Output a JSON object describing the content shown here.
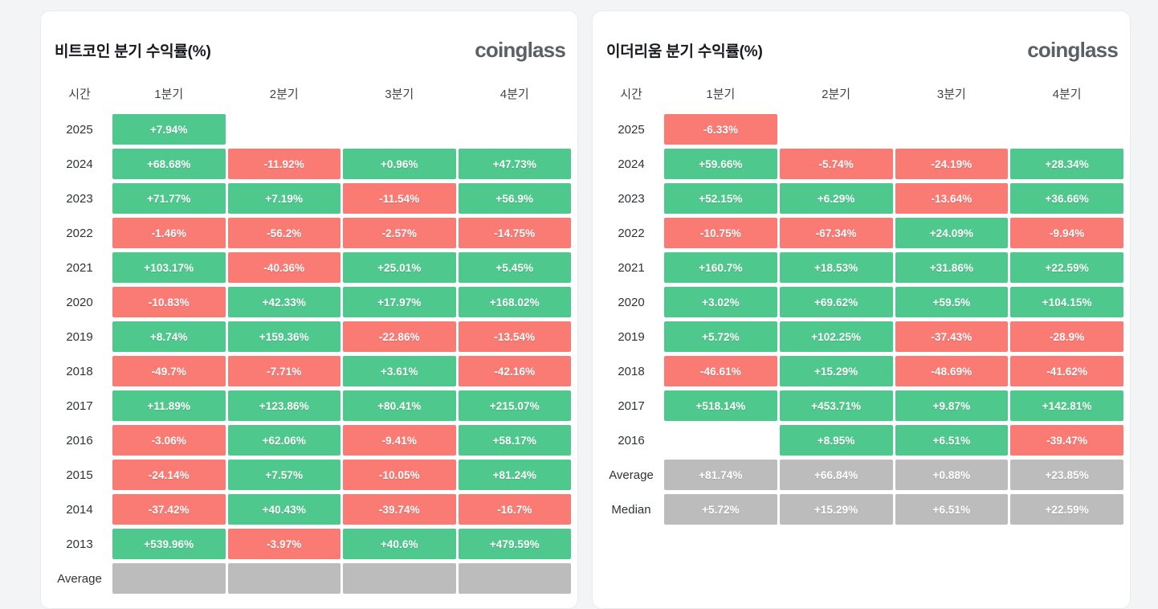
{
  "colors": {
    "background": "#f3f4f6",
    "card_background": "#ffffff",
    "card_border": "#e9ebee",
    "positive": "#4fc88d",
    "negative": "#fa7a74",
    "neutral": "#bcbcbc",
    "cell_text": "#ffffff",
    "title_text": "#17191d",
    "label_text": "#2f3338",
    "header_text": "#3f434a",
    "logo_text": "#5a6067"
  },
  "chart_data": [
    {
      "type": "table",
      "title": "비트코인 분기 수익률(%)",
      "logo": "coinglass",
      "columns": [
        "시간",
        "1분기",
        "2분기",
        "3분기",
        "4분기"
      ],
      "rows": [
        {
          "label": "2025",
          "values": [
            "+7.94%",
            null,
            null,
            null
          ]
        },
        {
          "label": "2024",
          "values": [
            "+68.68%",
            "-11.92%",
            "+0.96%",
            "+47.73%"
          ]
        },
        {
          "label": "2023",
          "values": [
            "+71.77%",
            "+7.19%",
            "-11.54%",
            "+56.9%"
          ]
        },
        {
          "label": "2022",
          "values": [
            "-1.46%",
            "-56.2%",
            "-2.57%",
            "-14.75%"
          ]
        },
        {
          "label": "2021",
          "values": [
            "+103.17%",
            "-40.36%",
            "+25.01%",
            "+5.45%"
          ]
        },
        {
          "label": "2020",
          "values": [
            "-10.83%",
            "+42.33%",
            "+17.97%",
            "+168.02%"
          ]
        },
        {
          "label": "2019",
          "values": [
            "+8.74%",
            "+159.36%",
            "-22.86%",
            "-13.54%"
          ]
        },
        {
          "label": "2018",
          "values": [
            "-49.7%",
            "-7.71%",
            "+3.61%",
            "-42.16%"
          ]
        },
        {
          "label": "2017",
          "values": [
            "+11.89%",
            "+123.86%",
            "+80.41%",
            "+215.07%"
          ]
        },
        {
          "label": "2016",
          "values": [
            "-3.06%",
            "+62.06%",
            "-9.41%",
            "+58.17%"
          ]
        },
        {
          "label": "2015",
          "values": [
            "-24.14%",
            "+7.57%",
            "-10.05%",
            "+81.24%"
          ]
        },
        {
          "label": "2014",
          "values": [
            "-37.42%",
            "+40.43%",
            "-39.74%",
            "-16.7%"
          ]
        },
        {
          "label": "2013",
          "values": [
            "+539.96%",
            "-3.97%",
            "+40.6%",
            "+479.59%"
          ]
        },
        {
          "label": "Average",
          "values": [
            "",
            "",
            "",
            ""
          ],
          "neutral": true
        }
      ]
    },
    {
      "type": "table",
      "title": "이더리움 분기 수익률(%)",
      "logo": "coinglass",
      "columns": [
        "시간",
        "1분기",
        "2분기",
        "3분기",
        "4분기"
      ],
      "rows": [
        {
          "label": "2025",
          "values": [
            "-6.33%",
            null,
            null,
            null
          ]
        },
        {
          "label": "2024",
          "values": [
            "+59.66%",
            "-5.74%",
            "-24.19%",
            "+28.34%"
          ]
        },
        {
          "label": "2023",
          "values": [
            "+52.15%",
            "+6.29%",
            "-13.64%",
            "+36.66%"
          ]
        },
        {
          "label": "2022",
          "values": [
            "-10.75%",
            "-67.34%",
            "+24.09%",
            "-9.94%"
          ]
        },
        {
          "label": "2021",
          "values": [
            "+160.7%",
            "+18.53%",
            "+31.86%",
            "+22.59%"
          ]
        },
        {
          "label": "2020",
          "values": [
            "+3.02%",
            "+69.62%",
            "+59.5%",
            "+104.15%"
          ]
        },
        {
          "label": "2019",
          "values": [
            "+5.72%",
            "+102.25%",
            "-37.43%",
            "-28.9%"
          ]
        },
        {
          "label": "2018",
          "values": [
            "-46.61%",
            "+15.29%",
            "-48.69%",
            "-41.62%"
          ]
        },
        {
          "label": "2017",
          "values": [
            "+518.14%",
            "+453.71%",
            "+9.87%",
            "+142.81%"
          ]
        },
        {
          "label": "2016",
          "values": [
            null,
            "+8.95%",
            "+6.51%",
            "-39.47%"
          ]
        },
        {
          "label": "Average",
          "values": [
            "+81.74%",
            "+66.84%",
            "+0.88%",
            "+23.85%"
          ],
          "neutral": true
        },
        {
          "label": "Median",
          "values": [
            "+5.72%",
            "+15.29%",
            "+6.51%",
            "+22.59%"
          ],
          "neutral": true
        }
      ]
    }
  ]
}
